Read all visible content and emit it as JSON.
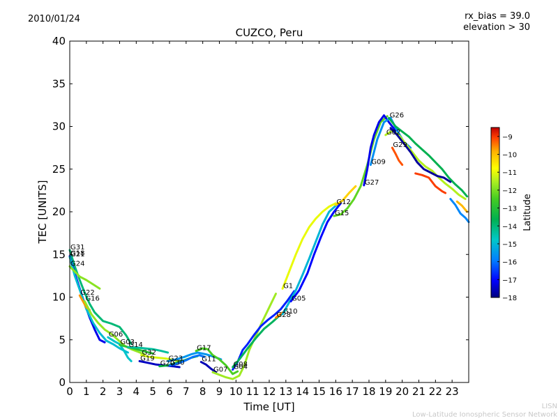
{
  "header": {
    "date": "2010/01/24",
    "rx_bias": "rx_bias = 39.0",
    "elevation": "elevation > 30"
  },
  "footer": {
    "line1": "LISN",
    "line2": "Low-Latitude Ionospheric Sensor Network"
  },
  "chart_data": {
    "type": "scatter",
    "title": "CUZCO, Peru",
    "xlabel": "Time [UT]",
    "ylabel": "TEC [UNITS]",
    "xlim": [
      0,
      24
    ],
    "ylim": [
      0,
      40
    ],
    "xticks": [
      "0",
      "1",
      "2",
      "3",
      "4",
      "5",
      "6",
      "7",
      "8",
      "9",
      "10",
      "11",
      "12",
      "13",
      "14",
      "15",
      "16",
      "17",
      "18",
      "19",
      "20",
      "21",
      "22",
      "23"
    ],
    "yticks": [
      "0",
      "5",
      "10",
      "15",
      "20",
      "25",
      "30",
      "35",
      "40"
    ],
    "colorbar": {
      "label": "Latitude",
      "min": -18,
      "max": -8.5,
      "ticks": [
        "-18",
        "-17",
        "-16",
        "-15",
        "-14",
        "-13",
        "-12",
        "-11",
        "-10",
        "-9"
      ],
      "colormap": [
        "#00007f",
        "#0000ff",
        "#007fff",
        "#00c8c8",
        "#00b050",
        "#44cc22",
        "#aaee22",
        "#ffff00",
        "#ffb000",
        "#ff4000",
        "#c00000"
      ]
    },
    "series": [
      {
        "name": "G31",
        "lat": -14.5,
        "points": [
          [
            0,
            15.5
          ],
          [
            0.3,
            13.6
          ],
          [
            0.6,
            12.0
          ],
          [
            0.9,
            10.5
          ],
          [
            1.2,
            9.2
          ],
          [
            1.5,
            8.2
          ],
          [
            2.0,
            7.2
          ],
          [
            2.5,
            6.9
          ],
          [
            3.0,
            6.5
          ],
          [
            3.4,
            5.5
          ],
          [
            3.7,
            4.5
          ]
        ]
      },
      {
        "name": "G18",
        "lat": -17.2,
        "points": [
          [
            0,
            14.8
          ],
          [
            0.3,
            12.8
          ],
          [
            0.6,
            11.0
          ],
          [
            0.9,
            9.2
          ],
          [
            1.2,
            7.6
          ],
          [
            1.5,
            6.2
          ],
          [
            1.8,
            5.0
          ],
          [
            2.1,
            4.7
          ]
        ]
      },
      {
        "name": "G21",
        "lat": -15.3,
        "points": [
          [
            0,
            14.7
          ],
          [
            0.3,
            12.5
          ],
          [
            0.7,
            10.3
          ],
          [
            1.0,
            8.6
          ],
          [
            1.4,
            7.0
          ],
          [
            1.8,
            5.8
          ],
          [
            2.2,
            4.9
          ],
          [
            2.6,
            4.5
          ],
          [
            3.0,
            4.0
          ],
          [
            3.5,
            3.5
          ]
        ]
      },
      {
        "name": "G24",
        "lat": -12.6,
        "points": [
          [
            0,
            13.6
          ],
          [
            0.3,
            13.0
          ],
          [
            0.6,
            12.4
          ],
          [
            1.0,
            12.0
          ],
          [
            1.4,
            11.5
          ],
          [
            1.8,
            11.0
          ]
        ]
      },
      {
        "name": "G22",
        "lat": -10.2,
        "points": [
          [
            0.6,
            10.2
          ],
          [
            0.8,
            9.5
          ],
          [
            1.0,
            8.8
          ],
          [
            1.2,
            8.5
          ]
        ]
      },
      {
        "name": "G16",
        "lat": -12.5,
        "points": [
          [
            0.9,
            9.5
          ],
          [
            1.3,
            8.0
          ],
          [
            1.7,
            7.0
          ],
          [
            2.1,
            6.2
          ],
          [
            2.5,
            5.7
          ],
          [
            2.9,
            5.0
          ],
          [
            3.3,
            4.3
          ],
          [
            3.7,
            3.9
          ],
          [
            4.1,
            3.6
          ],
          [
            4.5,
            3.3
          ]
        ]
      },
      {
        "name": "G06",
        "lat": -15.2,
        "points": [
          [
            2.3,
            5.3
          ],
          [
            2.7,
            4.8
          ],
          [
            3.0,
            4.5
          ],
          [
            3.3,
            3.6
          ],
          [
            3.5,
            2.9
          ],
          [
            3.7,
            2.5
          ]
        ]
      },
      {
        "name": "G03",
        "lat": -13.6,
        "points": [
          [
            3.0,
            4.4
          ],
          [
            3.4,
            4.2
          ],
          [
            3.8,
            4.0
          ],
          [
            4.2,
            3.8
          ],
          [
            4.6,
            3.6
          ],
          [
            5.0,
            3.4
          ]
        ]
      },
      {
        "name": "G14",
        "lat": -14.8,
        "points": [
          [
            3.5,
            4.1
          ],
          [
            4.0,
            4.1
          ],
          [
            4.5,
            4.0
          ],
          [
            5.0,
            3.9
          ],
          [
            5.5,
            3.7
          ],
          [
            5.9,
            3.5
          ]
        ]
      },
      {
        "name": "G32",
        "lat": -11.8,
        "points": [
          [
            4.3,
            3.2
          ],
          [
            4.8,
            3.0
          ],
          [
            5.3,
            2.9
          ],
          [
            5.8,
            2.8
          ],
          [
            6.3,
            2.6
          ],
          [
            6.7,
            2.4
          ]
        ]
      },
      {
        "name": "G19",
        "lat": -17.5,
        "points": [
          [
            4.2,
            2.5
          ],
          [
            4.7,
            2.3
          ],
          [
            5.2,
            2.1
          ],
          [
            5.7,
            2.0
          ],
          [
            6.2,
            1.9
          ],
          [
            6.6,
            1.8
          ]
        ]
      },
      {
        "name": "G23",
        "lat": -15.8,
        "points": [
          [
            5.9,
            2.5
          ],
          [
            6.4,
            2.7
          ],
          [
            6.9,
            3.0
          ],
          [
            7.3,
            3.3
          ],
          [
            7.7,
            3.5
          ],
          [
            8.2,
            3.3
          ],
          [
            8.7,
            3.0
          ],
          [
            9.1,
            2.7
          ]
        ]
      },
      {
        "name": "G20",
        "lat": -14.0,
        "points": [
          [
            5.4,
            1.9
          ],
          [
            5.9,
            2.0
          ],
          [
            6.4,
            2.3
          ],
          [
            6.9,
            2.6
          ],
          [
            7.3,
            2.9
          ],
          [
            7.7,
            3.1
          ]
        ]
      },
      {
        "name": "G30",
        "lat": -16.2,
        "points": [
          [
            6.0,
            2.0
          ],
          [
            6.5,
            2.2
          ],
          [
            7.0,
            2.6
          ],
          [
            7.4,
            3.0
          ],
          [
            7.8,
            3.2
          ],
          [
            8.1,
            3.0
          ]
        ]
      },
      {
        "name": "G17",
        "lat": -13.2,
        "points": [
          [
            7.6,
            3.7
          ],
          [
            8.0,
            4.0
          ],
          [
            8.3,
            3.9
          ],
          [
            8.6,
            3.2
          ],
          [
            9.0,
            2.7
          ],
          [
            9.4,
            2.0
          ],
          [
            9.8,
            1.0
          ],
          [
            10.1,
            1.3
          ]
        ]
      },
      {
        "name": "G11",
        "lat": -17.6,
        "points": [
          [
            7.9,
            2.4
          ],
          [
            8.2,
            2.1
          ],
          [
            8.5,
            1.6
          ],
          [
            8.8,
            1.2
          ]
        ]
      },
      {
        "name": "G07",
        "lat": -12.4,
        "points": [
          [
            8.6,
            1.2
          ],
          [
            9.0,
            0.9
          ],
          [
            9.4,
            0.6
          ],
          [
            9.8,
            0.4
          ],
          [
            10.2,
            0.8
          ],
          [
            10.5,
            2.0
          ],
          [
            10.8,
            3.8
          ],
          [
            11.2,
            5.5
          ],
          [
            11.6,
            7.2
          ],
          [
            12.0,
            8.8
          ],
          [
            12.4,
            10.4
          ]
        ]
      },
      {
        "name": "G04",
        "lat": -16.8,
        "points": [
          [
            9.8,
            1.5
          ],
          [
            10.1,
            2.4
          ],
          [
            10.4,
            3.8
          ],
          [
            10.7,
            4.5
          ],
          [
            11.1,
            5.6
          ],
          [
            11.5,
            6.6
          ],
          [
            11.9,
            7.3
          ],
          [
            12.3,
            7.9
          ],
          [
            12.7,
            8.6
          ],
          [
            13.1,
            9.6
          ],
          [
            13.5,
            10.7
          ]
        ]
      },
      {
        "name": "G08",
        "lat": -14.3,
        "points": [
          [
            9.8,
            1.8
          ],
          [
            10.2,
            2.7
          ],
          [
            10.7,
            4.0
          ],
          [
            11.2,
            5.2
          ],
          [
            11.7,
            6.3
          ],
          [
            12.2,
            7.1
          ],
          [
            12.6,
            7.8
          ],
          [
            13.0,
            8.5
          ]
        ]
      },
      {
        "name": "G28",
        "lat": -10.0,
        "points": [
          [
            12.4,
            7.6
          ],
          [
            12.6,
            7.9
          ],
          [
            12.8,
            8.2
          ]
        ]
      },
      {
        "name": "G10",
        "lat": -15.4,
        "points": [
          [
            12.8,
            8.0
          ],
          [
            13.2,
            9.4
          ],
          [
            13.6,
            10.8
          ],
          [
            14.0,
            12.6
          ],
          [
            14.4,
            14.5
          ],
          [
            14.8,
            16.5
          ],
          [
            15.2,
            18.5
          ],
          [
            15.6,
            20.0
          ],
          [
            16.0,
            20.7
          ],
          [
            16.4,
            21.3
          ]
        ]
      },
      {
        "name": "G05",
        "lat": -17.0,
        "points": [
          [
            13.3,
            9.5
          ],
          [
            13.8,
            10.8
          ],
          [
            14.3,
            12.8
          ],
          [
            14.7,
            15.0
          ],
          [
            15.1,
            17.0
          ],
          [
            15.5,
            18.8
          ],
          [
            15.9,
            20.0
          ],
          [
            16.3,
            21.0
          ]
        ]
      },
      {
        "name": "G1",
        "lat": -11.6,
        "points": [
          [
            12.8,
            11.0
          ],
          [
            13.2,
            13.0
          ],
          [
            13.6,
            15.0
          ],
          [
            14.0,
            16.8
          ],
          [
            14.4,
            18.2
          ],
          [
            14.8,
            19.2
          ],
          [
            15.2,
            20.0
          ],
          [
            15.6,
            20.6
          ],
          [
            16.0,
            21.0
          ]
        ]
      },
      {
        "name": "G15",
        "lat": -13.0,
        "points": [
          [
            15.9,
            19.5
          ],
          [
            16.3,
            19.7
          ],
          [
            16.7,
            20.4
          ],
          [
            17.1,
            21.5
          ],
          [
            17.5,
            23.0
          ],
          [
            17.9,
            25.5
          ],
          [
            18.3,
            28.5
          ],
          [
            18.7,
            30.5
          ],
          [
            19.1,
            31.2
          ]
        ]
      },
      {
        "name": "G12",
        "lat": -10.8,
        "points": [
          [
            16.0,
            20.8
          ],
          [
            16.4,
            21.3
          ],
          [
            16.8,
            22.2
          ],
          [
            17.2,
            23.0
          ]
        ]
      },
      {
        "name": "G27",
        "lat": -17.2,
        "points": [
          [
            17.7,
            23.1
          ],
          [
            17.9,
            25.0
          ],
          [
            18.1,
            27.5
          ],
          [
            18.3,
            29.0
          ],
          [
            18.6,
            30.5
          ],
          [
            18.9,
            31.3
          ],
          [
            19.2,
            30.5
          ],
          [
            19.6,
            29.5
          ]
        ]
      },
      {
        "name": "G09",
        "lat": -15.9,
        "points": [
          [
            18.1,
            25.5
          ],
          [
            18.5,
            28.5
          ],
          [
            18.9,
            30.5
          ],
          [
            19.3,
            31.0
          ],
          [
            19.7,
            29.5
          ],
          [
            20.1,
            28.2
          ],
          [
            20.5,
            27.5
          ]
        ]
      },
      {
        "name": "G02",
        "lat": -12.2,
        "points": [
          [
            19.0,
            29.0
          ],
          [
            19.4,
            29.5
          ],
          [
            19.8,
            29.0
          ],
          [
            20.2,
            28.0
          ],
          [
            20.6,
            27.0
          ],
          [
            21.0,
            26.0
          ],
          [
            21.4,
            25.3
          ],
          [
            21.8,
            24.8
          ],
          [
            22.2,
            24.0
          ],
          [
            22.6,
            23.3
          ],
          [
            23.0,
            22.7
          ],
          [
            23.4,
            22.0
          ],
          [
            23.8,
            21.5
          ]
        ]
      },
      {
        "name": "G26",
        "lat": -14.2,
        "points": [
          [
            19.2,
            31.0
          ],
          [
            19.6,
            30.0
          ],
          [
            20.0,
            29.4
          ],
          [
            20.4,
            28.8
          ],
          [
            20.8,
            28.0
          ],
          [
            21.2,
            27.3
          ],
          [
            21.6,
            26.6
          ],
          [
            22.0,
            25.8
          ],
          [
            22.4,
            25.0
          ],
          [
            22.8,
            24.0
          ],
          [
            23.2,
            23.2
          ],
          [
            23.6,
            22.5
          ],
          [
            23.9,
            21.8
          ]
        ]
      },
      {
        "name": "G29",
        "lat": -9.6,
        "points": [
          [
            19.4,
            27.5
          ],
          [
            19.6,
            26.8
          ],
          [
            19.8,
            26.0
          ],
          [
            20.0,
            25.5
          ]
        ]
      },
      {
        "name": "",
        "lat": -17.8,
        "points": [
          [
            19.3,
            29.8
          ],
          [
            19.7,
            29.0
          ],
          [
            20.1,
            28.0
          ],
          [
            20.5,
            27.0
          ],
          [
            20.9,
            25.8
          ],
          [
            21.3,
            25.0
          ],
          [
            21.7,
            24.6
          ],
          [
            22.1,
            24.2
          ],
          [
            22.5,
            24.0
          ],
          [
            22.9,
            23.5
          ]
        ]
      },
      {
        "name": "",
        "lat": -9.4,
        "points": [
          [
            20.8,
            24.5
          ],
          [
            21.2,
            24.3
          ],
          [
            21.6,
            24.0
          ],
          [
            22.0,
            23.0
          ],
          [
            22.4,
            22.4
          ],
          [
            22.6,
            22.2
          ]
        ]
      },
      {
        "name": "",
        "lat": -16.0,
        "points": [
          [
            22.9,
            21.5
          ],
          [
            23.2,
            20.8
          ],
          [
            23.5,
            19.8
          ],
          [
            23.8,
            19.3
          ],
          [
            24.0,
            18.8
          ]
        ]
      },
      {
        "name": "",
        "lat": -10.5,
        "points": [
          [
            23.3,
            21.2
          ],
          [
            23.6,
            20.7
          ],
          [
            23.9,
            20.0
          ]
        ]
      }
    ]
  }
}
